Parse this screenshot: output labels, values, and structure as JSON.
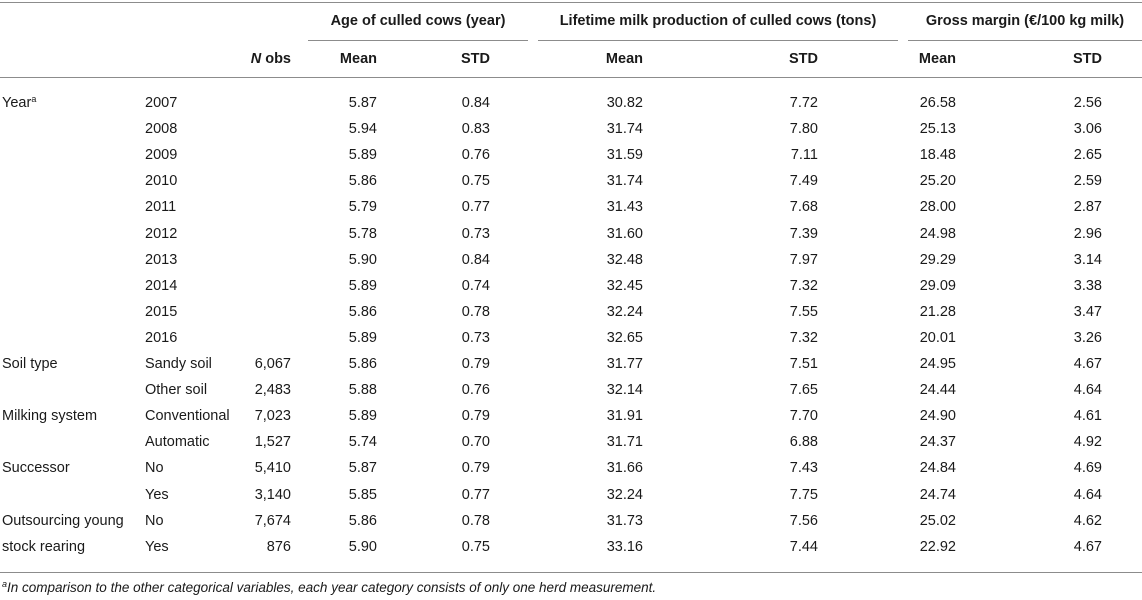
{
  "header": {
    "groups": [
      {
        "label": "Age of culled cows (year)"
      },
      {
        "label": "Lifetime milk production of culled cows (tons)"
      },
      {
        "label": "Gross margin (€/100 kg milk)"
      }
    ],
    "n_label_italic": "N",
    "n_label_rest": " obs",
    "mean_label": "Mean",
    "std_label": "STD"
  },
  "rows": [
    {
      "group": "Year",
      "group_sup": "a",
      "group2": "",
      "category": "2007",
      "n": "",
      "age_mean": "5.87",
      "age_std": "0.84",
      "milk_mean": "30.82",
      "milk_std": "7.72",
      "gm_mean": "26.58",
      "gm_std": "2.56"
    },
    {
      "group": "",
      "group_sup": "",
      "group2": "",
      "category": "2008",
      "n": "",
      "age_mean": "5.94",
      "age_std": "0.83",
      "milk_mean": "31.74",
      "milk_std": "7.80",
      "gm_mean": "25.13",
      "gm_std": "3.06"
    },
    {
      "group": "",
      "group_sup": "",
      "group2": "",
      "category": "2009",
      "n": "",
      "age_mean": "5.89",
      "age_std": "0.76",
      "milk_mean": "31.59",
      "milk_std": "7.11",
      "gm_mean": "18.48",
      "gm_std": "2.65"
    },
    {
      "group": "",
      "group_sup": "",
      "group2": "",
      "category": "2010",
      "n": "",
      "age_mean": "5.86",
      "age_std": "0.75",
      "milk_mean": "31.74",
      "milk_std": "7.49",
      "gm_mean": "25.20",
      "gm_std": "2.59"
    },
    {
      "group": "",
      "group_sup": "",
      "group2": "",
      "category": "2011",
      "n": "",
      "age_mean": "5.79",
      "age_std": "0.77",
      "milk_mean": "31.43",
      "milk_std": "7.68",
      "gm_mean": "28.00",
      "gm_std": "2.87"
    },
    {
      "group": "",
      "group_sup": "",
      "group2": "",
      "category": "2012",
      "n": "",
      "age_mean": "5.78",
      "age_std": "0.73",
      "milk_mean": "31.60",
      "milk_std": "7.39",
      "gm_mean": "24.98",
      "gm_std": "2.96"
    },
    {
      "group": "",
      "group_sup": "",
      "group2": "",
      "category": "2013",
      "n": "",
      "age_mean": "5.90",
      "age_std": "0.84",
      "milk_mean": "32.48",
      "milk_std": "7.97",
      "gm_mean": "29.29",
      "gm_std": "3.14"
    },
    {
      "group": "",
      "group_sup": "",
      "group2": "",
      "category": "2014",
      "n": "",
      "age_mean": "5.89",
      "age_std": "0.74",
      "milk_mean": "32.45",
      "milk_std": "7.32",
      "gm_mean": "29.09",
      "gm_std": "3.38"
    },
    {
      "group": "",
      "group_sup": "",
      "group2": "",
      "category": "2015",
      "n": "",
      "age_mean": "5.86",
      "age_std": "0.78",
      "milk_mean": "32.24",
      "milk_std": "7.55",
      "gm_mean": "21.28",
      "gm_std": "3.47"
    },
    {
      "group": "",
      "group_sup": "",
      "group2": "",
      "category": "2016",
      "n": "",
      "age_mean": "5.89",
      "age_std": "0.73",
      "milk_mean": "32.65",
      "milk_std": "7.32",
      "gm_mean": "20.01",
      "gm_std": "3.26"
    },
    {
      "group": "Soil type",
      "group_sup": "",
      "group2": "",
      "category": "Sandy soil",
      "n": "6,067",
      "age_mean": "5.86",
      "age_std": "0.79",
      "milk_mean": "31.77",
      "milk_std": "7.51",
      "gm_mean": "24.95",
      "gm_std": "4.67"
    },
    {
      "group": "",
      "group_sup": "",
      "group2": "",
      "category": "Other soil",
      "n": "2,483",
      "age_mean": "5.88",
      "age_std": "0.76",
      "milk_mean": "32.14",
      "milk_std": "7.65",
      "gm_mean": "24.44",
      "gm_std": "4.64"
    },
    {
      "group": "Milking system",
      "group_sup": "",
      "group2": "",
      "category": "Conventional",
      "n": "7,023",
      "age_mean": "5.89",
      "age_std": "0.79",
      "milk_mean": "31.91",
      "milk_std": "7.70",
      "gm_mean": "24.90",
      "gm_std": "4.61"
    },
    {
      "group": "",
      "group_sup": "",
      "group2": "",
      "category": "Automatic",
      "n": "1,527",
      "age_mean": "5.74",
      "age_std": "0.70",
      "milk_mean": "31.71",
      "milk_std": "6.88",
      "gm_mean": "24.37",
      "gm_std": "4.92"
    },
    {
      "group": "Successor",
      "group_sup": "",
      "group2": "",
      "category": "No",
      "n": "5,410",
      "age_mean": "5.87",
      "age_std": "0.79",
      "milk_mean": "31.66",
      "milk_std": "7.43",
      "gm_mean": "24.84",
      "gm_std": "4.69"
    },
    {
      "group": "",
      "group_sup": "",
      "group2": "",
      "category": "Yes",
      "n": "3,140",
      "age_mean": "5.85",
      "age_std": "0.77",
      "milk_mean": "32.24",
      "milk_std": "7.75",
      "gm_mean": "24.74",
      "gm_std": "4.64"
    },
    {
      "group": "Outsourcing young",
      "group_sup": "",
      "group2": "",
      "category": "No",
      "n": "7,674",
      "age_mean": "5.86",
      "age_std": "0.78",
      "milk_mean": "31.73",
      "milk_std": "7.56",
      "gm_mean": "25.02",
      "gm_std": "4.62"
    },
    {
      "group": "stock rearing",
      "group_sup": "",
      "group2": "",
      "category": "Yes",
      "n": "876",
      "age_mean": "5.90",
      "age_std": "0.75",
      "milk_mean": "33.16",
      "milk_std": "7.44",
      "gm_mean": "22.92",
      "gm_std": "4.67"
    }
  ],
  "footnote": {
    "sup": "a",
    "text": "In comparison to the other categorical variables, each year category consists of only one herd measurement."
  }
}
